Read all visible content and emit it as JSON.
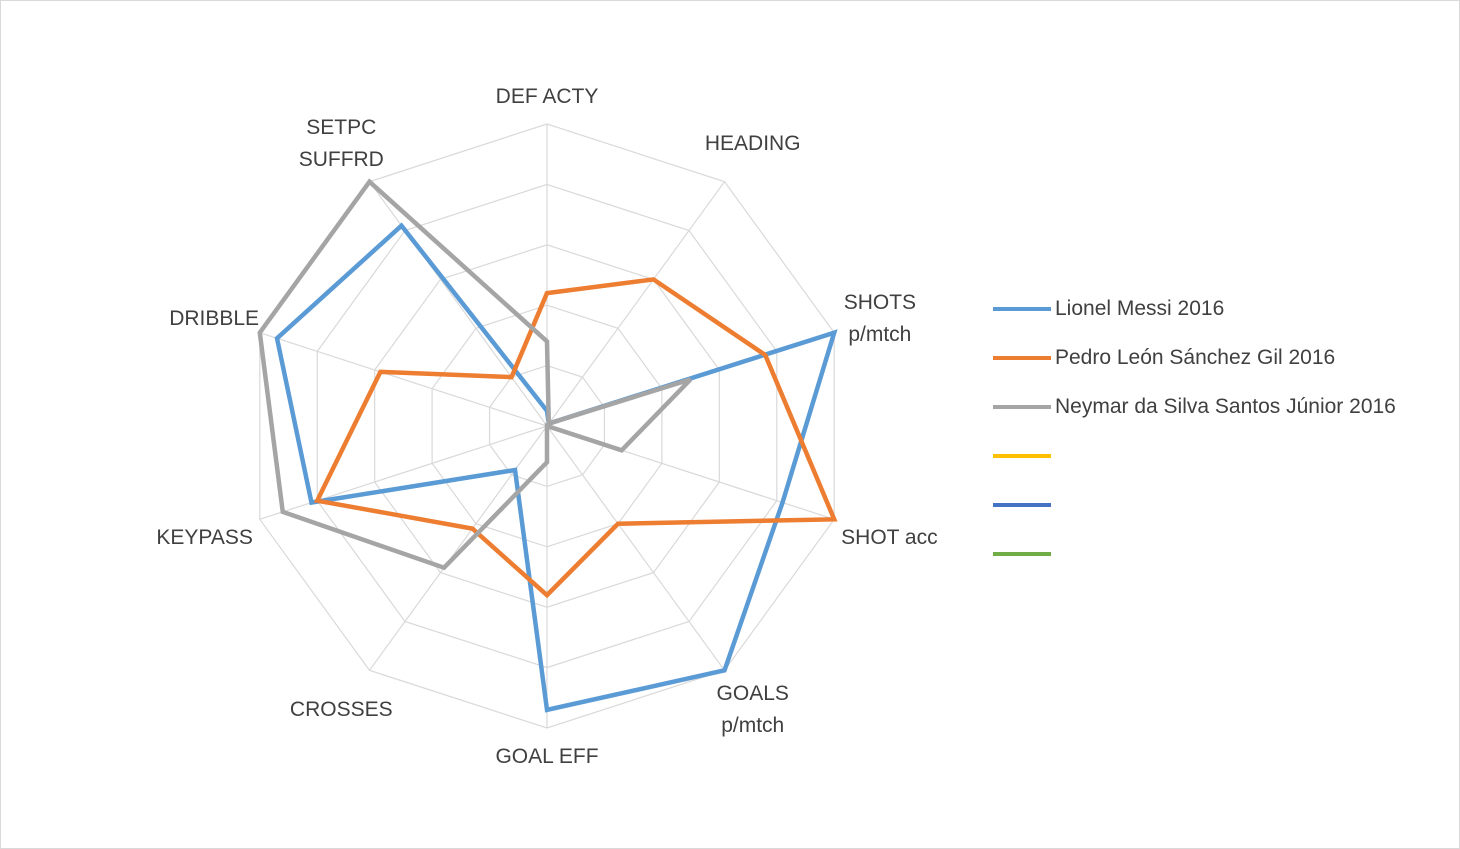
{
  "chart_data": {
    "type": "radar",
    "axes": [
      [
        "DEF ACTY"
      ],
      [
        "HEADING"
      ],
      [
        "SHOTS",
        "p/mtch"
      ],
      [
        "SHOT acc"
      ],
      [
        "GOALS",
        "p/mtch"
      ],
      [
        "GOAL EFF"
      ],
      [
        "CROSSES"
      ],
      [
        "KEYPASS"
      ],
      [
        "DRIBBLE"
      ],
      [
        "SETPC",
        "SUFFRD"
      ]
    ],
    "rlim": [
      0,
      5
    ],
    "gridlines": [
      1,
      2,
      3,
      4,
      5
    ],
    "series": [
      {
        "name": "Lionel Messi 2016",
        "color": "#5B9BD5",
        "values": [
          0.25,
          0.05,
          5.0,
          4.1,
          5.0,
          4.7,
          0.9,
          4.1,
          4.7,
          4.1
        ]
      },
      {
        "name": "Pedro León Sánchez Gil 2016",
        "color": "#ED7D31",
        "values": [
          2.2,
          3.0,
          3.8,
          5.0,
          2.0,
          2.8,
          2.1,
          4.0,
          2.9,
          1.0
        ]
      },
      {
        "name": "Neymar da Silva Santos Júnior 2016",
        "color": "#A5A5A5",
        "values": [
          1.4,
          0.05,
          2.5,
          1.3,
          0.0,
          0.6,
          2.9,
          4.6,
          5.0,
          5.0
        ]
      },
      {
        "name": "",
        "color": "#FFC000",
        "values": []
      },
      {
        "name": "",
        "color": "#4472C4",
        "values": []
      },
      {
        "name": "",
        "color": "#70AD47",
        "values": []
      }
    ],
    "legend_position": "right"
  }
}
